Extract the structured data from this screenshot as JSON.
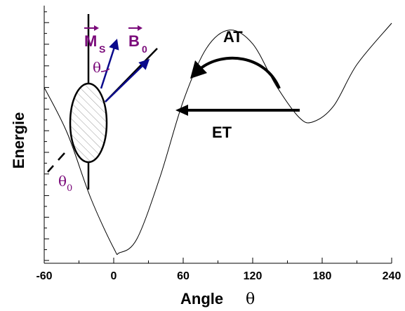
{
  "chart_data": {
    "type": "line",
    "title": "",
    "xlabel": "Angle",
    "xlabel_symbol": "θ",
    "ylabel": "Energie",
    "xlim": [
      -60,
      240
    ],
    "xticks": [
      "-60",
      "0",
      "60",
      "120",
      "180",
      "240"
    ],
    "xtick_values": [
      -60,
      0,
      60,
      120,
      180,
      240
    ],
    "y_ticks_labeled": false,
    "grid": false,
    "series": [
      {
        "x": [
          -60,
          -40,
          -20,
          0,
          5,
          20,
          40,
          60,
          80,
          100,
          120,
          140,
          160,
          172,
          190,
          210,
          240
        ],
        "y": [
          0.72,
          0.52,
          0.24,
          0.02,
          0.0,
          0.06,
          0.33,
          0.66,
          0.89,
          0.97,
          0.91,
          0.73,
          0.59,
          0.57,
          0.64,
          0.82,
          1.0
        ]
      }
    ],
    "annotations": {
      "arrow_at": "AT",
      "arrow_et": "ET",
      "vector_ms": "M",
      "vector_ms_sub": "S",
      "vector_b0": "B",
      "vector_b0_sub": "0",
      "angle_theta": "θ",
      "angle_theta0": "θ",
      "angle_theta0_sub": "0"
    },
    "colors": {
      "curve": "#000000",
      "vectors": "#0a0a8c",
      "vector_labels": "#7a0a7a"
    }
  }
}
